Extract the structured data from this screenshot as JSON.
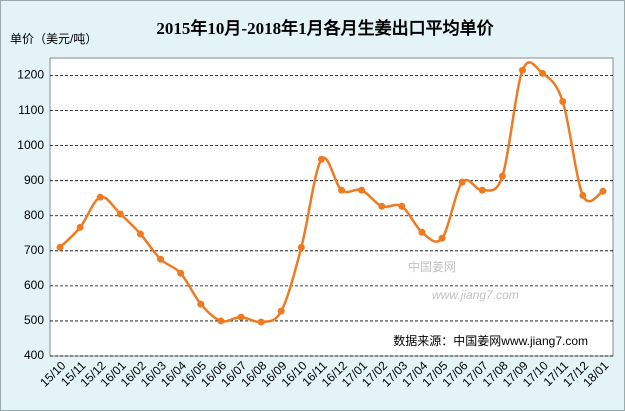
{
  "chart_data": {
    "type": "line",
    "title": "2015年10月-2018年1月各月生姜出口平均单价",
    "y_label": "单价（美元/吨）",
    "source": "数据来源：中国姜网www.jiang7.com",
    "watermark": "中国姜网",
    "watermark_url": "www.jiang7.com",
    "categories": [
      "15/10",
      "15/11",
      "15/12",
      "16/01",
      "16/02",
      "16/03",
      "16/04",
      "16/05",
      "16/06",
      "16/07",
      "16/08",
      "16/09",
      "16/10",
      "16/11",
      "16/12",
      "17/01",
      "17/02",
      "17/03",
      "17/04",
      "17/05",
      "17/06",
      "17/07",
      "17/08",
      "17/09",
      "17/10",
      "17/11",
      "17/12",
      "18/01"
    ],
    "series": [
      {
        "color": "#ee7b22",
        "values": [
          710,
          767,
          853,
          805,
          748,
          676,
          636,
          548,
          500,
          511,
          497,
          528,
          710,
          961,
          873,
          873,
          827,
          827,
          753,
          736,
          896,
          873,
          913,
          1215,
          1206,
          1126,
          858,
          870
        ]
      }
    ],
    "ylim": [
      400,
      1250
    ],
    "yticks": [
      400,
      500,
      600,
      700,
      800,
      900,
      1000,
      1100,
      1200
    ],
    "grid": true
  }
}
